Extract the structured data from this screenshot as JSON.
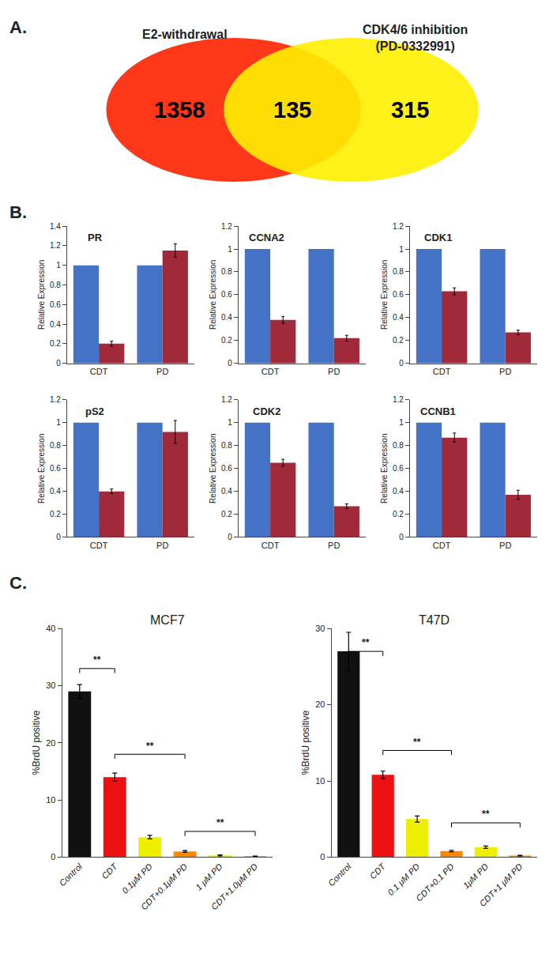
{
  "chart_data": [
    {
      "type": "venn",
      "categories": [
        "E2-withdrawal",
        "CDK4/6 inhibition\n(PD-0332991)"
      ],
      "values": [
        1358,
        315
      ],
      "overlap_value": 135,
      "colors": [
        "#FF2200",
        "#FFEE00"
      ],
      "annotations": [
        "A."
      ]
    },
    {
      "type": "bar",
      "title": "PR",
      "ylabel": "Relative Expression",
      "categories": [
        "CDT",
        "PD"
      ],
      "series": [
        {
          "color": "#4472C4",
          "values": [
            1.0,
            1.0
          ]
        },
        {
          "color": "#A0293A",
          "values": [
            0.2,
            1.15
          ],
          "errors": [
            0.025,
            0.07
          ]
        }
      ],
      "ylim": [
        0,
        1.4
      ],
      "yticks": [
        0,
        0.2,
        0.4,
        0.6,
        0.8,
        1,
        1.2,
        1.4
      ],
      "grid": false,
      "annotations": [
        "B."
      ]
    },
    {
      "type": "bar",
      "title": "CCNA2",
      "ylabel": "Relative Expression",
      "categories": [
        "CDT",
        "PD"
      ],
      "series": [
        {
          "color": "#4472C4",
          "values": [
            1.0,
            1.0
          ]
        },
        {
          "color": "#A0293A",
          "values": [
            0.38,
            0.22
          ],
          "errors": [
            0.03,
            0.025
          ]
        }
      ],
      "ylim": [
        0,
        1.2
      ],
      "yticks": [
        0,
        0.2,
        0.4,
        0.6,
        0.8,
        1,
        1.2
      ],
      "grid": false
    },
    {
      "type": "bar",
      "title": "CDK1",
      "ylabel": "Relative Expression",
      "categories": [
        "CDT",
        "PD"
      ],
      "series": [
        {
          "color": "#4472C4",
          "values": [
            1.0,
            1.0
          ]
        },
        {
          "color": "#A0293A",
          "values": [
            0.63,
            0.27
          ],
          "errors": [
            0.03,
            0.02
          ]
        }
      ],
      "ylim": [
        0,
        1.2
      ],
      "yticks": [
        0,
        0.2,
        0.4,
        0.6,
        0.8,
        1,
        1.2
      ],
      "grid": false
    },
    {
      "type": "bar",
      "title": "pS2",
      "ylabel": "Relative Expression",
      "categories": [
        "CDT",
        "PD"
      ],
      "series": [
        {
          "color": "#4472C4",
          "values": [
            1.0,
            1.0
          ]
        },
        {
          "color": "#A0293A",
          "values": [
            0.4,
            0.92
          ],
          "errors": [
            0.02,
            0.1
          ]
        }
      ],
      "ylim": [
        0,
        1.2
      ],
      "yticks": [
        0,
        0.2,
        0.4,
        0.6,
        0.8,
        1,
        1.2
      ],
      "grid": false
    },
    {
      "type": "bar",
      "title": "CDK2",
      "ylabel": "Relative Expression",
      "categories": [
        "CDT",
        "PD"
      ],
      "series": [
        {
          "color": "#4472C4",
          "values": [
            1.0,
            1.0
          ]
        },
        {
          "color": "#A0293A",
          "values": [
            0.65,
            0.27
          ],
          "errors": [
            0.03,
            0.02
          ]
        }
      ],
      "ylim": [
        0,
        1.2
      ],
      "yticks": [
        0,
        0.2,
        0.4,
        0.6,
        0.8,
        1,
        1.2
      ],
      "grid": false
    },
    {
      "type": "bar",
      "title": "CCNB1",
      "ylabel": "Relative Expression",
      "categories": [
        "CDT",
        "PD"
      ],
      "series": [
        {
          "color": "#4472C4",
          "values": [
            1.0,
            1.0
          ]
        },
        {
          "color": "#A0293A",
          "values": [
            0.87,
            0.37
          ],
          "errors": [
            0.04,
            0.04
          ]
        }
      ],
      "ylim": [
        0,
        1.2
      ],
      "yticks": [
        0,
        0.2,
        0.4,
        0.6,
        0.8,
        1,
        1.2
      ],
      "grid": false
    },
    {
      "type": "bar",
      "title": "MCF7",
      "ylabel": "%BrdU positive",
      "categories": [
        "Control",
        "CDT",
        "0.1μM PD",
        "CDT+0.1μM PD",
        "1 μM PD",
        "CDT+1.0μM PD"
      ],
      "values": [
        29,
        14,
        3.5,
        1.0,
        0.3,
        0.15
      ],
      "errors": [
        1.2,
        0.7,
        0.3,
        0.15,
        0.1,
        0.05
      ],
      "colors": [
        "#111111",
        "#EE1111",
        "#EEEE00",
        "#FF8800",
        "#EEEE00",
        "#FF8800"
      ],
      "ylim": [
        0,
        40
      ],
      "yticks": [
        0,
        10,
        20,
        30,
        40
      ],
      "grid": false,
      "annotations": [
        "C.",
        {
          "x1": 0,
          "x2": 1,
          "y": 33,
          "text": "**"
        },
        {
          "x1": 1,
          "x2": 3,
          "y": 18,
          "text": "**"
        },
        {
          "x1": 3,
          "x2": 5,
          "y": 4.5,
          "text": "**"
        }
      ]
    },
    {
      "type": "bar",
      "title": "T47D",
      "ylabel": "%BrdU positive",
      "categories": [
        "Control",
        "CDT",
        "0.1 μM PD",
        "CDT+0.1 PD",
        "1μM PD",
        "CDT+1 μM PD"
      ],
      "values": [
        27,
        10.8,
        5.0,
        0.8,
        1.3,
        0.2
      ],
      "errors": [
        2.5,
        0.5,
        0.4,
        0.1,
        0.15,
        0.05
      ],
      "colors": [
        "#111111",
        "#EE1111",
        "#EEEE00",
        "#FF8800",
        "#EEEE00",
        "#FF8800"
      ],
      "ylim": [
        0,
        30
      ],
      "yticks": [
        0,
        10,
        20,
        30
      ],
      "grid": false,
      "annotations": [
        {
          "x1": 0,
          "x2": 1,
          "y": 27,
          "text": "**"
        },
        {
          "x1": 1,
          "x2": 3,
          "y": 14,
          "text": "**"
        },
        {
          "x1": 3,
          "x2": 5,
          "y": 4.5,
          "text": "**"
        }
      ]
    }
  ]
}
